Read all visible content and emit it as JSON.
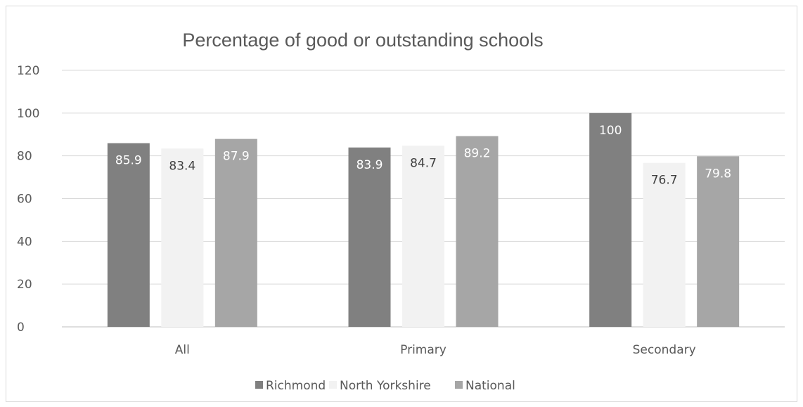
{
  "chart_data": {
    "type": "bar",
    "title": "Percentage of good or outstanding schools",
    "categories": [
      "All",
      "Primary",
      "Secondary"
    ],
    "series": [
      {
        "name": "Richmond",
        "values": [
          85.9,
          83.9,
          100
        ],
        "color": "#808080",
        "label_color": "#ffffff"
      },
      {
        "name": "North Yorkshire",
        "values": [
          83.4,
          84.7,
          76.7
        ],
        "color": "#f2f2f2",
        "label_color": "#404040"
      },
      {
        "name": "National",
        "values": [
          87.9,
          89.2,
          79.8
        ],
        "color": "#a6a6a6",
        "label_color": "#ffffff"
      }
    ],
    "ylim": [
      0,
      120
    ],
    "yticks": [
      0,
      20,
      40,
      60,
      80,
      100,
      120
    ],
    "grid": true,
    "legend_position": "bottom",
    "data_labels": "inside-end"
  }
}
